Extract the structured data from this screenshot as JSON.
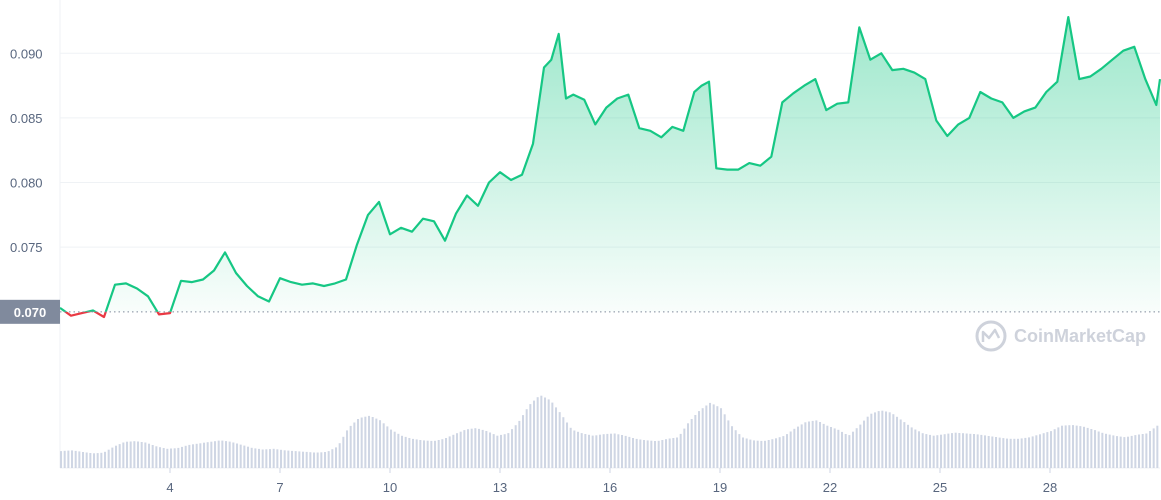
{
  "chart_data": {
    "type": "line",
    "y_axis_ticks": [
      "0.090",
      "0.085",
      "0.080",
      "0.075"
    ],
    "ylim": [
      0.0655,
      0.0935
    ],
    "x_axis_ticks": [
      "4",
      "7",
      "10",
      "13",
      "16",
      "19",
      "22",
      "25",
      "28"
    ],
    "xlim": [
      1,
      31
    ],
    "reference_line": {
      "value": 0.07,
      "label": "0.070"
    },
    "colors": {
      "up": "#16c784",
      "down": "#ea3943",
      "ref_label_bg": "#808a9d",
      "volume": "#cfd6e4"
    },
    "series": [
      {
        "x": [
          1.0,
          1.3,
          1.6,
          1.9,
          2.2,
          2.5,
          2.8,
          3.1,
          3.4,
          3.7,
          4.0,
          4.3,
          4.6,
          4.9,
          5.2,
          5.5,
          5.8,
          6.1,
          6.4,
          6.7,
          7.0,
          7.3,
          7.6,
          7.9,
          8.2,
          8.5,
          8.8,
          9.1,
          9.4,
          9.7,
          10.0,
          10.3,
          10.6,
          10.9,
          11.2,
          11.5,
          11.8,
          12.1,
          12.4,
          12.7,
          13.0,
          13.3,
          13.6,
          13.9,
          14.2,
          14.4,
          14.6,
          14.8,
          15.0,
          15.3,
          15.6,
          15.9,
          16.2,
          16.5,
          16.8,
          17.1,
          17.4,
          17.7,
          18.0,
          18.3,
          18.5,
          18.7,
          18.9,
          19.2,
          19.5,
          19.8,
          20.1,
          20.4,
          20.7,
          21.0,
          21.3,
          21.6,
          21.9,
          22.2,
          22.5,
          22.8,
          23.1,
          23.4,
          23.7,
          24.0,
          24.3,
          24.6,
          24.9,
          25.2,
          25.5,
          25.8,
          26.1,
          26.4,
          26.7,
          27.0,
          27.3,
          27.6,
          27.9,
          28.2,
          28.5,
          28.8,
          29.1,
          29.4,
          29.7,
          30.0,
          30.3,
          30.6,
          30.9,
          31.0
        ],
        "y": [
          0.0703,
          0.0697,
          0.0699,
          0.0701,
          0.0696,
          0.0721,
          0.0722,
          0.0718,
          0.0712,
          0.0698,
          0.0699,
          0.0724,
          0.0723,
          0.0725,
          0.0732,
          0.0746,
          0.073,
          0.072,
          0.0712,
          0.0708,
          0.0726,
          0.0723,
          0.0721,
          0.0722,
          0.072,
          0.0722,
          0.0725,
          0.0752,
          0.0775,
          0.0785,
          0.076,
          0.0765,
          0.0762,
          0.0772,
          0.077,
          0.0755,
          0.0776,
          0.079,
          0.0782,
          0.08,
          0.0808,
          0.0802,
          0.0806,
          0.083,
          0.0889,
          0.0895,
          0.0915,
          0.0865,
          0.0868,
          0.0864,
          0.0845,
          0.0858,
          0.0865,
          0.0868,
          0.0842,
          0.084,
          0.0835,
          0.0843,
          0.084,
          0.087,
          0.0875,
          0.0878,
          0.0811,
          0.081,
          0.081,
          0.0815,
          0.0813,
          0.082,
          0.0862,
          0.0869,
          0.0875,
          0.088,
          0.0856,
          0.0861,
          0.0862,
          0.092,
          0.0895,
          0.09,
          0.0887,
          0.0888,
          0.0885,
          0.088,
          0.0848,
          0.0836,
          0.0845,
          0.085,
          0.087,
          0.0865,
          0.0862,
          0.085,
          0.0855,
          0.0858,
          0.087,
          0.0878,
          0.0928,
          0.088,
          0.0882,
          0.0888,
          0.0895,
          0.0902,
          0.0905,
          0.088,
          0.086,
          0.088
        ]
      }
    ],
    "volume": [
      0.22,
      0.23,
      0.21,
      0.19,
      0.2,
      0.28,
      0.34,
      0.35,
      0.33,
      0.28,
      0.25,
      0.26,
      0.3,
      0.32,
      0.34,
      0.36,
      0.34,
      0.3,
      0.26,
      0.24,
      0.25,
      0.23,
      0.22,
      0.21,
      0.2,
      0.21,
      0.28,
      0.52,
      0.65,
      0.68,
      0.62,
      0.5,
      0.42,
      0.38,
      0.36,
      0.35,
      0.38,
      0.44,
      0.5,
      0.52,
      0.48,
      0.42,
      0.45,
      0.6,
      0.82,
      0.95,
      0.88,
      0.7,
      0.5,
      0.45,
      0.42,
      0.44,
      0.45,
      0.42,
      0.38,
      0.36,
      0.35,
      0.38,
      0.4,
      0.6,
      0.75,
      0.85,
      0.78,
      0.55,
      0.4,
      0.36,
      0.35,
      0.38,
      0.42,
      0.52,
      0.6,
      0.62,
      0.55,
      0.5,
      0.42,
      0.55,
      0.7,
      0.75,
      0.72,
      0.62,
      0.52,
      0.45,
      0.42,
      0.44,
      0.46,
      0.45,
      0.44,
      0.42,
      0.4,
      0.38,
      0.38,
      0.4,
      0.44,
      0.48,
      0.55,
      0.56,
      0.54,
      0.5,
      0.45,
      0.42,
      0.4,
      0.43,
      0.45,
      0.55
    ],
    "watermark": "CoinMarketCap"
  }
}
